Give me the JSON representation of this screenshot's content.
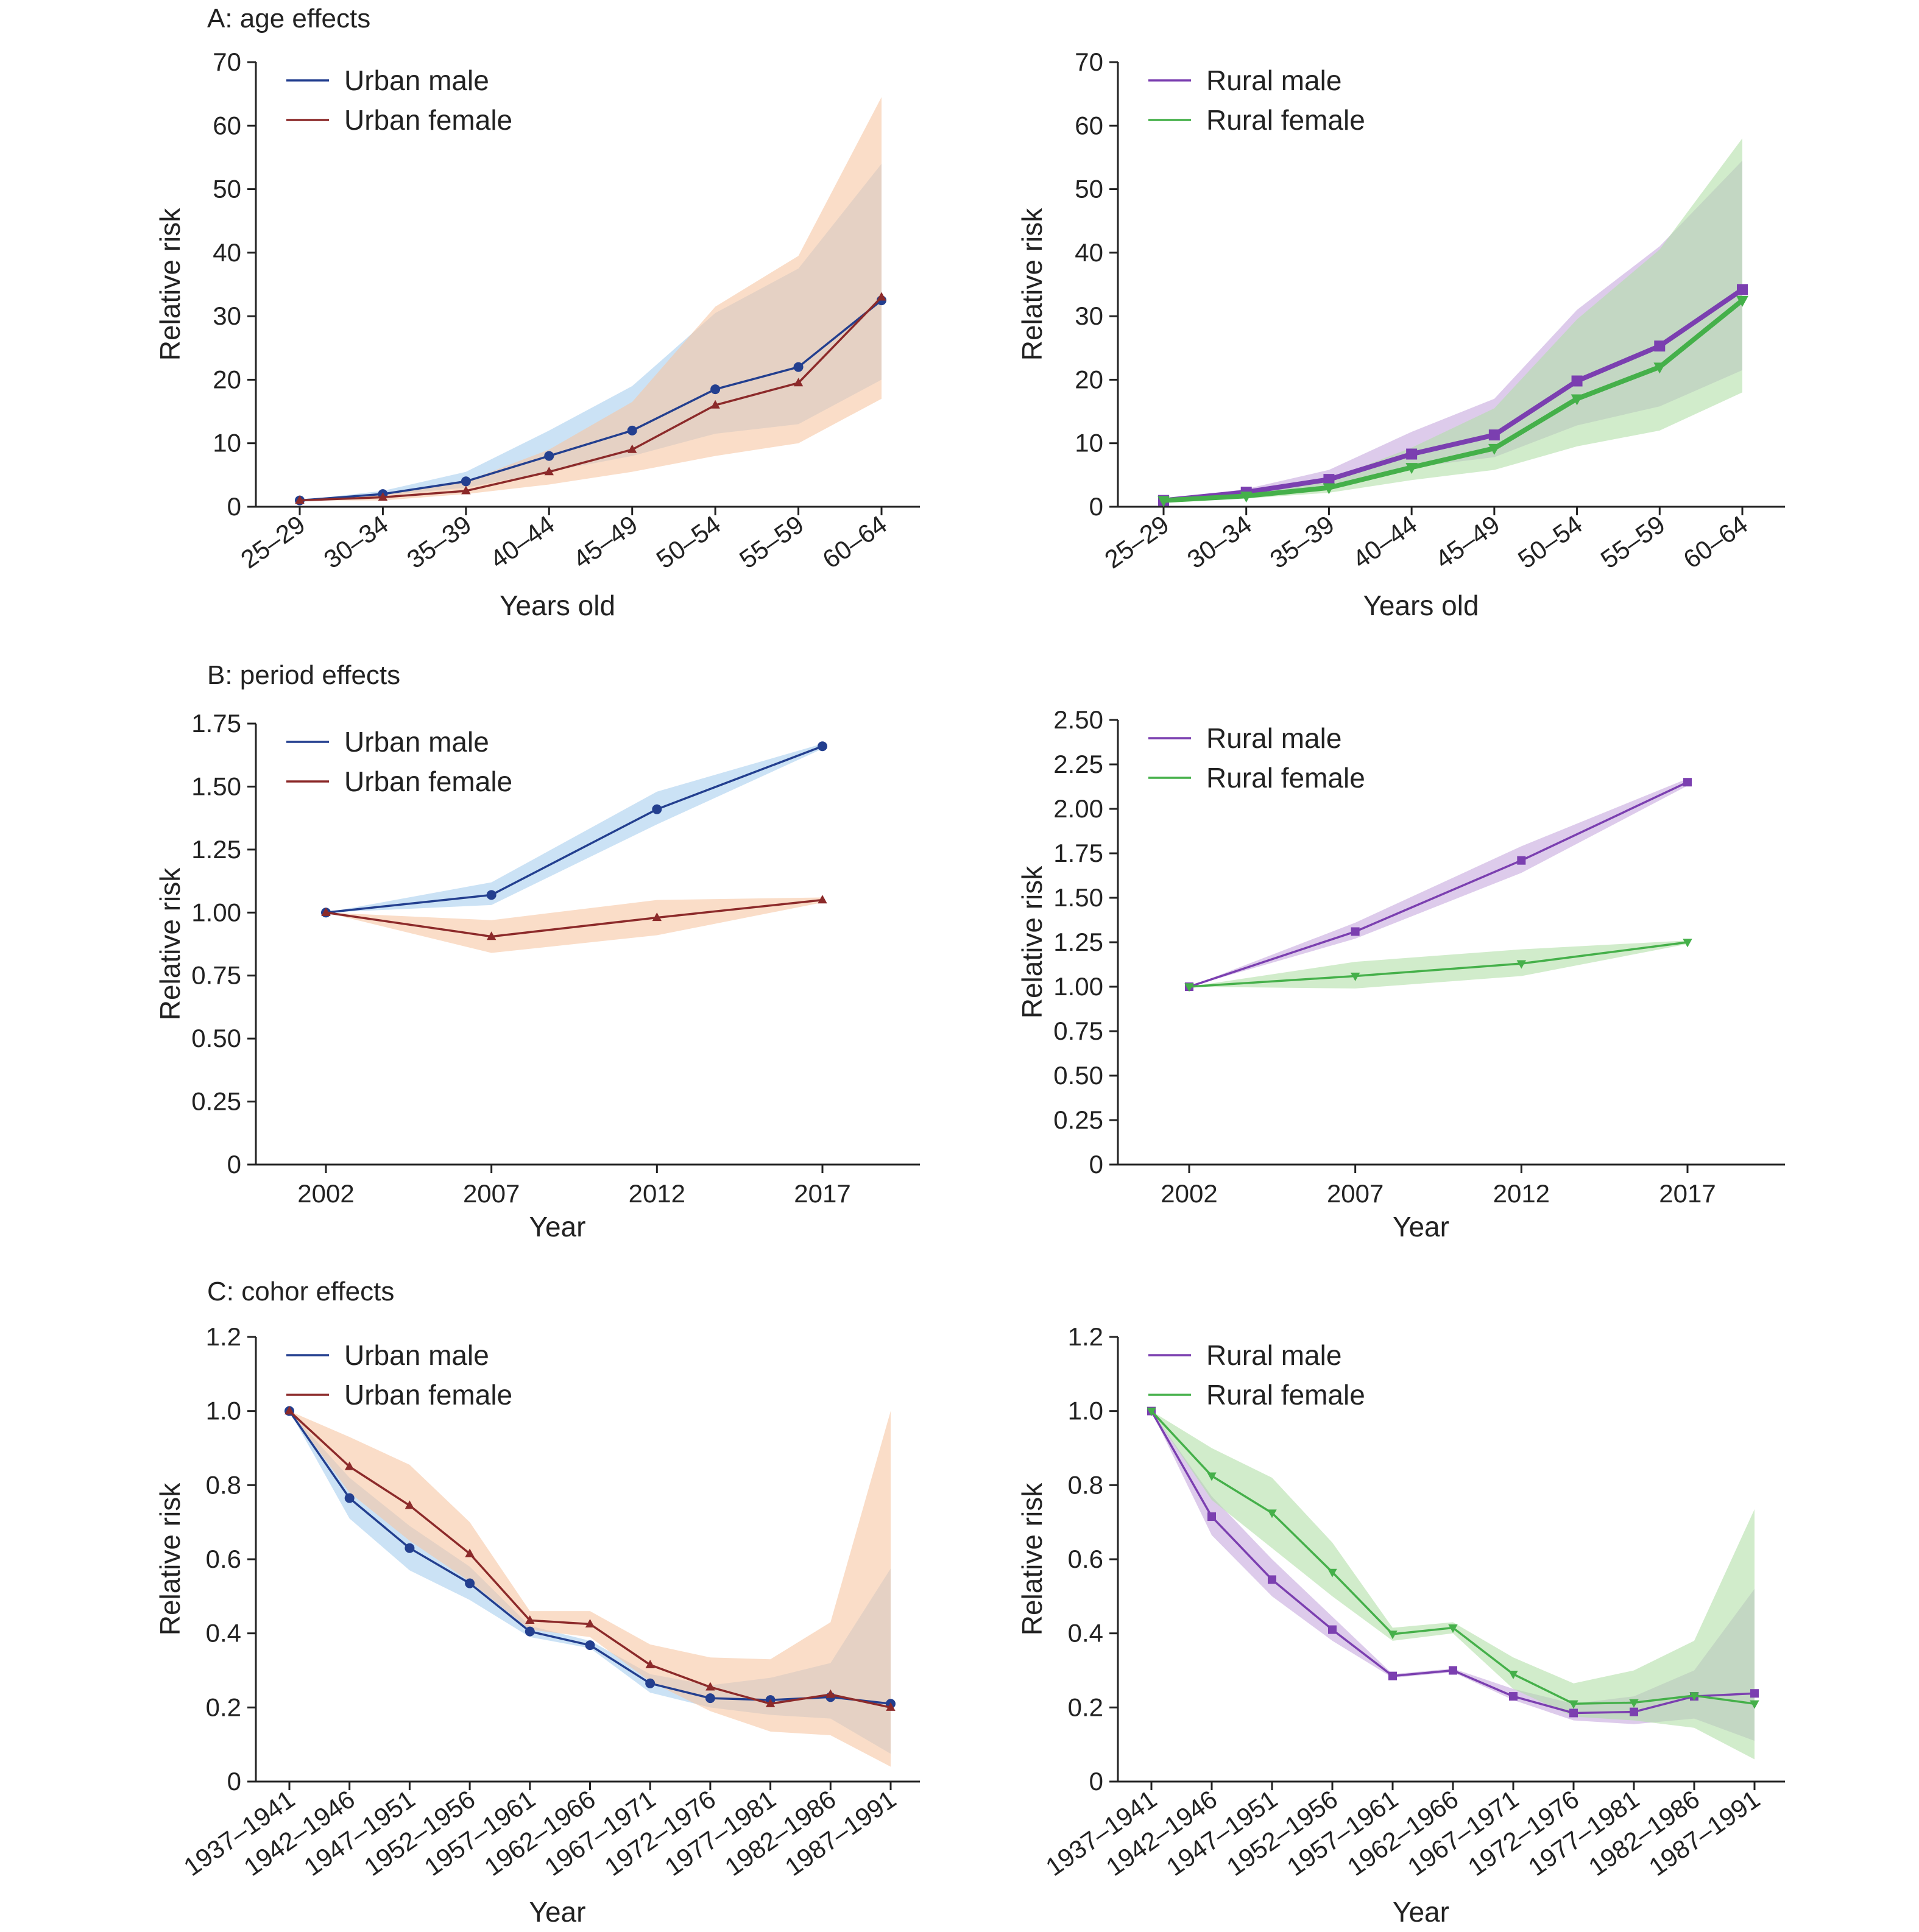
{
  "colors": {
    "urban_male": "#233f8f",
    "urban_female": "#8c2a2a",
    "urban_male_band": "#a9cfee",
    "urban_female_band": "#f7c7a3",
    "rural_male": "#7b3fb0",
    "rural_female": "#45b04a",
    "rural_male_band": "#c6a9dd",
    "rural_female_band": "#b3e0a9"
  },
  "chart_data": [
    {
      "id": "A-urban",
      "type": "line",
      "section_title": "A: age effects",
      "xlabel": "Years old",
      "ylabel": "Relative risk",
      "categories": [
        "25–29",
        "30–34",
        "35–39",
        "40–44",
        "45–49",
        "50–54",
        "55–59",
        "60–64"
      ],
      "ylim": [
        0,
        70
      ],
      "yticks": [
        "0",
        "10",
        "20",
        "30",
        "40",
        "50",
        "60",
        "70"
      ],
      "legend_position": "top-left",
      "series": [
        {
          "name": "Urban male",
          "color_key": "urban_male",
          "band_key": "urban_male_band",
          "marker": "circle",
          "values": [
            1.0,
            2.0,
            4.0,
            8.0,
            12.0,
            18.5,
            22.0,
            32.5
          ],
          "lower": [
            1.0,
            1.8,
            3.0,
            5.5,
            8.0,
            11.5,
            13.0,
            20.0
          ],
          "upper": [
            1.0,
            2.5,
            5.5,
            12.0,
            19.0,
            30.5,
            37.5,
            54.0
          ]
        },
        {
          "name": "Urban female",
          "color_key": "urban_female",
          "band_key": "urban_female_band",
          "marker": "triangle",
          "values": [
            1.0,
            1.5,
            2.5,
            5.5,
            9.0,
            16.0,
            19.5,
            33.0
          ],
          "lower": [
            1.0,
            1.0,
            2.0,
            3.5,
            5.5,
            8.0,
            10.0,
            17.0
          ],
          "upper": [
            1.0,
            2.0,
            4.0,
            9.0,
            16.5,
            31.5,
            39.5,
            64.5
          ]
        }
      ]
    },
    {
      "id": "A-rural",
      "type": "line",
      "xlabel": "Years old",
      "ylabel": "Relative risk",
      "categories": [
        "25–29",
        "30–34",
        "35–39",
        "40–44",
        "45–49",
        "50–54",
        "55–59",
        "60–64"
      ],
      "ylim": [
        0,
        70
      ],
      "yticks": [
        "0",
        "10",
        "20",
        "30",
        "40",
        "50",
        "60",
        "70"
      ],
      "legend_position": "top-left",
      "series": [
        {
          "name": "Rural male",
          "color_key": "rural_male",
          "band_key": "rural_male_band",
          "marker": "square",
          "values": [
            1.0,
            2.3,
            4.3,
            8.3,
            11.3,
            19.8,
            25.3,
            34.2
          ],
          "lower": [
            1.0,
            2.0,
            3.3,
            6.2,
            7.8,
            12.8,
            15.8,
            21.5
          ],
          "upper": [
            1.0,
            2.8,
            5.8,
            11.8,
            17.0,
            31.0,
            41.0,
            54.5
          ]
        },
        {
          "name": "Rural female",
          "color_key": "rural_female",
          "band_key": "rural_female_band",
          "marker": "triangle-down",
          "values": [
            1.0,
            1.7,
            3.0,
            6.2,
            9.2,
            17.0,
            22.0,
            32.5
          ],
          "lower": [
            1.0,
            1.3,
            2.2,
            4.2,
            5.8,
            9.5,
            12.0,
            18.0
          ],
          "upper": [
            1.0,
            2.3,
            4.3,
            9.3,
            15.5,
            29.5,
            40.5,
            58.0
          ]
        }
      ]
    },
    {
      "id": "B-urban",
      "type": "line",
      "section_title": "B: period effects",
      "xlabel": "Year",
      "ylabel": "Relative risk",
      "categories": [
        "2002",
        "2007",
        "2012",
        "2017"
      ],
      "ylim": [
        0,
        1.75
      ],
      "yticks": [
        "0",
        "0.25",
        "0.50",
        "0.75",
        "1.00",
        "1.25",
        "1.50",
        "1.75"
      ],
      "legend_position": "top-left",
      "series": [
        {
          "name": "Urban male",
          "color_key": "urban_male",
          "band_key": "urban_male_band",
          "marker": "circle",
          "values": [
            1.0,
            1.07,
            1.41,
            1.66
          ],
          "lower": [
            1.0,
            1.03,
            1.35,
            1.65
          ],
          "upper": [
            1.0,
            1.12,
            1.48,
            1.67
          ]
        },
        {
          "name": "Urban female",
          "color_key": "urban_female",
          "band_key": "urban_female_band",
          "marker": "triangle",
          "values": [
            1.0,
            0.905,
            0.98,
            1.05
          ],
          "lower": [
            1.0,
            0.84,
            0.91,
            1.04
          ],
          "upper": [
            1.0,
            0.97,
            1.05,
            1.06
          ]
        }
      ]
    },
    {
      "id": "B-rural",
      "type": "line",
      "xlabel": "Year",
      "ylabel": "Relative risk",
      "categories": [
        "2002",
        "2007",
        "2012",
        "2017"
      ],
      "ylim": [
        0,
        2.5
      ],
      "yticks": [
        "0",
        "0.25",
        "0.50",
        "0.75",
        "1.00",
        "1.25",
        "1.50",
        "1.75",
        "2.00",
        "2.25",
        "2.50"
      ],
      "legend_position": "top-left",
      "series": [
        {
          "name": "Rural male",
          "color_key": "rural_male",
          "band_key": "rural_male_band",
          "marker": "square",
          "values": [
            1.0,
            1.31,
            1.71,
            2.15
          ],
          "lower": [
            1.0,
            1.27,
            1.64,
            2.13
          ],
          "upper": [
            1.0,
            1.36,
            1.79,
            2.17
          ]
        },
        {
          "name": "Rural female",
          "color_key": "rural_female",
          "band_key": "rural_female_band",
          "marker": "triangle-down",
          "values": [
            1.0,
            1.06,
            1.13,
            1.25
          ],
          "lower": [
            1.0,
            0.99,
            1.06,
            1.24
          ],
          "upper": [
            1.0,
            1.14,
            1.21,
            1.26
          ]
        }
      ]
    },
    {
      "id": "C-urban",
      "type": "line",
      "section_title": "C: cohor effects",
      "xlabel": "Year",
      "ylabel": "Relative risk",
      "categories": [
        "1937–1941",
        "1942–1946",
        "1947–1951",
        "1952–1956",
        "1957–1961",
        "1962–1966",
        "1967–1971",
        "1972–1976",
        "1977–1981",
        "1982–1986",
        "1987–1991"
      ],
      "ylim": [
        0,
        1.2
      ],
      "yticks": [
        "0",
        "0.2",
        "0.4",
        "0.6",
        "0.8",
        "1.0",
        "1.2"
      ],
      "legend_position": "top-left",
      "series": [
        {
          "name": "Urban male",
          "color_key": "urban_male",
          "band_key": "urban_male_band",
          "marker": "circle",
          "values": [
            1.0,
            0.765,
            0.63,
            0.535,
            0.405,
            0.368,
            0.265,
            0.225,
            0.22,
            0.228,
            0.21
          ],
          "lower": [
            1.0,
            0.71,
            0.57,
            0.49,
            0.39,
            0.36,
            0.24,
            0.2,
            0.18,
            0.17,
            0.075
          ],
          "upper": [
            1.0,
            0.82,
            0.69,
            0.58,
            0.42,
            0.38,
            0.29,
            0.26,
            0.28,
            0.32,
            0.575
          ]
        },
        {
          "name": "Urban female",
          "color_key": "urban_female",
          "band_key": "urban_female_band",
          "marker": "triangle",
          "values": [
            1.0,
            0.85,
            0.745,
            0.615,
            0.435,
            0.425,
            0.315,
            0.255,
            0.21,
            0.235,
            0.2
          ],
          "lower": [
            1.0,
            0.78,
            0.65,
            0.54,
            0.41,
            0.39,
            0.27,
            0.19,
            0.135,
            0.125,
            0.04
          ],
          "upper": [
            1.0,
            0.93,
            0.855,
            0.7,
            0.46,
            0.46,
            0.37,
            0.335,
            0.33,
            0.43,
            1.0
          ]
        }
      ]
    },
    {
      "id": "C-rural",
      "type": "line",
      "xlabel": "Year",
      "ylabel": "Relative risk",
      "categories": [
        "1937–1941",
        "1942–1946",
        "1947–1951",
        "1952–1956",
        "1957–1961",
        "1962–1966",
        "1967–1971",
        "1972–1976",
        "1977–1981",
        "1982–1986",
        "1987–1991"
      ],
      "ylim": [
        0,
        1.2
      ],
      "yticks": [
        "0",
        "0.2",
        "0.4",
        "0.6",
        "0.8",
        "1.0",
        "1.2"
      ],
      "legend_position": "top-left",
      "series": [
        {
          "name": "Rural male",
          "color_key": "rural_male",
          "band_key": "rural_male_band",
          "marker": "square",
          "values": [
            1.0,
            0.715,
            0.545,
            0.41,
            0.285,
            0.3,
            0.23,
            0.185,
            0.188,
            0.23,
            0.238
          ],
          "lower": [
            1.0,
            0.665,
            0.5,
            0.38,
            0.28,
            0.295,
            0.22,
            0.165,
            0.155,
            0.17,
            0.11
          ],
          "upper": [
            1.0,
            0.77,
            0.6,
            0.445,
            0.29,
            0.305,
            0.25,
            0.21,
            0.23,
            0.3,
            0.52
          ]
        },
        {
          "name": "Rural female",
          "color_key": "rural_female",
          "band_key": "rural_female_band",
          "marker": "triangle-down",
          "values": [
            1.0,
            0.825,
            0.725,
            0.565,
            0.398,
            0.415,
            0.29,
            0.21,
            0.213,
            0.232,
            0.21
          ],
          "lower": [
            1.0,
            0.76,
            0.63,
            0.5,
            0.38,
            0.4,
            0.25,
            0.175,
            0.165,
            0.145,
            0.06
          ],
          "upper": [
            1.0,
            0.9,
            0.82,
            0.645,
            0.415,
            0.43,
            0.335,
            0.265,
            0.3,
            0.38,
            0.735
          ]
        }
      ]
    }
  ]
}
